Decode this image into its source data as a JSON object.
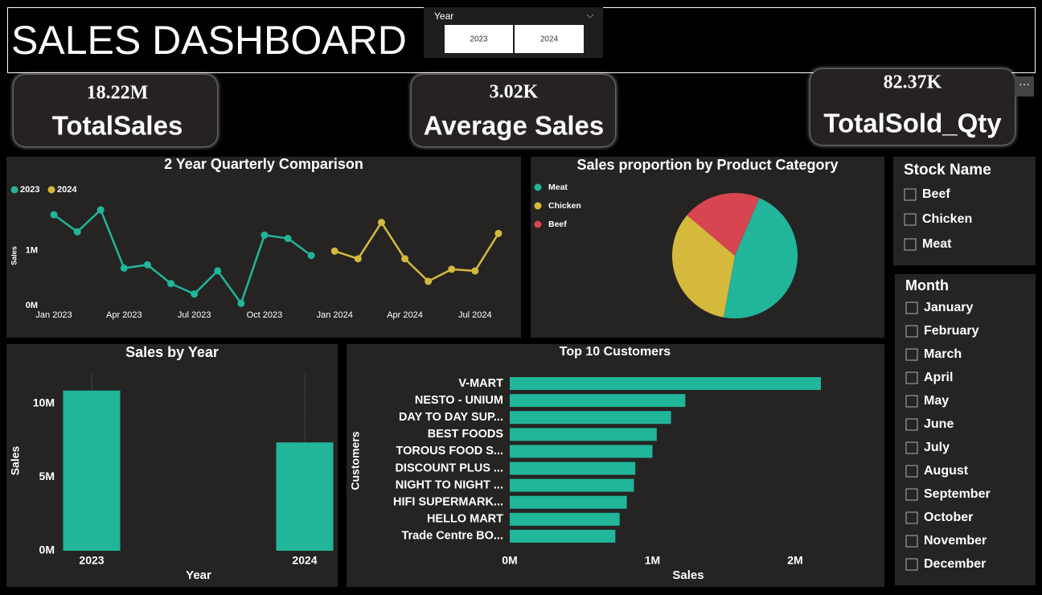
{
  "header": {
    "title": "SALES DASHBOARD"
  },
  "year_slicer": {
    "title": "Year",
    "options": [
      "2023",
      "2024"
    ]
  },
  "kpis": [
    {
      "value": "18.22M",
      "label": "TotalSales"
    },
    {
      "value": "3.02K",
      "label": "Average Sales"
    },
    {
      "value": "82.37K",
      "label": "TotalSold_Qty"
    }
  ],
  "stock_slicer": {
    "title": "Stock Name",
    "options": [
      "Beef",
      "Chicken",
      "Meat"
    ]
  },
  "month_slicer": {
    "title": "Month",
    "options": [
      "January",
      "February",
      "March",
      "April",
      "May",
      "June",
      "July",
      "August",
      "September",
      "October",
      "November",
      "December"
    ]
  },
  "chart_data": [
    {
      "type": "line",
      "title": "2 Year Quarterly Comparison",
      "y_label": "Sales",
      "categories": [
        "Jan 2023",
        null,
        null,
        "Apr 2023",
        null,
        null,
        "Jul 2023",
        null,
        null,
        "Oct 2023",
        null,
        null,
        "Jan 2024",
        null,
        null,
        "Apr 2024",
        null,
        null,
        "Jul 2024",
        null
      ],
      "series": [
        {
          "name": "2023",
          "color": "#21b59a",
          "values": [
            1.65,
            1.34,
            1.74,
            0.68,
            0.74,
            0.4,
            0.21,
            0.63,
            0.04,
            1.28,
            1.22,
            0.91,
            null,
            null,
            null,
            null,
            null,
            null,
            null,
            null
          ]
        },
        {
          "name": "2024",
          "color": "#d4b93c",
          "values": [
            null,
            null,
            null,
            null,
            null,
            null,
            null,
            null,
            null,
            null,
            null,
            null,
            0.99,
            0.85,
            1.51,
            0.85,
            0.44,
            0.66,
            0.63,
            1.31
          ]
        }
      ],
      "ylim": [
        0,
        1.9
      ],
      "yticks": [
        {
          "value": 0,
          "label": "0M"
        },
        {
          "value": 1,
          "label": "1M"
        }
      ],
      "legend": "top-left"
    },
    {
      "type": "pie",
      "title": "Sales proportion by Product Category",
      "categories": [
        "Meat",
        "Chicken",
        "Beef"
      ],
      "values": [
        46.5,
        33.3,
        20.2
      ],
      "colors": [
        "#21b59a",
        "#d4b93c",
        "#d64550"
      ],
      "legend": "top-left"
    },
    {
      "type": "bar",
      "title": "Sales by Year",
      "x_label": "Year",
      "y_label": "Sales",
      "categories": [
        "2023",
        "2024"
      ],
      "values": [
        10.87,
        7.35
      ],
      "color": "#21b59a",
      "ylim": [
        0,
        12
      ],
      "yticks": [
        {
          "value": 0,
          "label": "0M"
        },
        {
          "value": 5,
          "label": "5M"
        },
        {
          "value": 10,
          "label": "10M"
        }
      ]
    },
    {
      "type": "barh",
      "title": "Top 10 Customers",
      "x_label": "Sales",
      "y_label": "Customers",
      "categories": [
        "V-MART",
        "NESTO - UNIUM",
        "DAY TO DAY SUP...",
        "BEST FOODS",
        "TOROUS FOOD S...",
        "DISCOUNT PLUS ...",
        "NIGHT TO NIGHT ...",
        "HIFI SUPERMARK...",
        "HELLO MART",
        "Trade Centre BO..."
      ],
      "values": [
        2.18,
        1.23,
        1.13,
        1.03,
        1.0,
        0.88,
        0.87,
        0.82,
        0.77,
        0.74
      ],
      "color": "#21b59a",
      "xlim": [
        0,
        2.4
      ],
      "xticks": [
        {
          "value": 0,
          "label": "0M"
        },
        {
          "value": 1,
          "label": "1M"
        },
        {
          "value": 2,
          "label": "2M"
        }
      ]
    }
  ]
}
